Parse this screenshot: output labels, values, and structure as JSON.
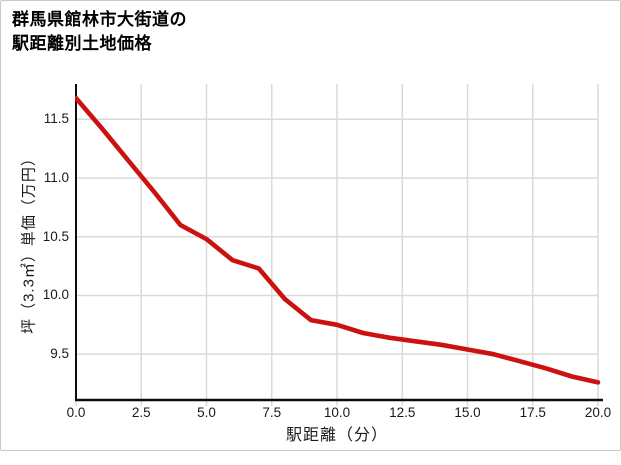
{
  "card": {
    "title_lines": [
      "群馬県館林市大街道の",
      "駅距離別土地価格"
    ]
  },
  "chart_data": {
    "type": "line",
    "title": "群馬県館林市大街道の駅距離別土地価格",
    "xlabel": "駅距離（分）",
    "ylabel": "坪（3.3㎡）単価（万円）",
    "x": [
      0,
      1,
      2,
      3,
      4,
      5,
      6,
      7,
      8,
      9,
      10,
      11,
      12,
      13,
      14,
      15,
      16,
      17,
      18,
      19,
      20
    ],
    "values": [
      11.68,
      11.42,
      11.15,
      10.88,
      10.6,
      10.48,
      10.3,
      10.23,
      9.97,
      9.79,
      9.75,
      9.68,
      9.64,
      9.61,
      9.58,
      9.54,
      9.5,
      9.44,
      9.38,
      9.31,
      9.26
    ],
    "xlim": [
      0,
      20
    ],
    "ylim": [
      9.11,
      11.8
    ],
    "x_ticks": [
      0,
      2.5,
      5,
      7.5,
      10,
      12.5,
      15,
      17.5,
      20
    ],
    "x_tick_labels": [
      "0.0",
      "2.5",
      "5.0",
      "7.5",
      "10.0",
      "12.5",
      "15.0",
      "17.5",
      "20.0"
    ],
    "y_ticks": [
      9.5,
      10.0,
      10.5,
      11.0,
      11.5
    ],
    "y_tick_labels": [
      "9.5",
      "10.0",
      "10.5",
      "11.0",
      "11.5"
    ],
    "grid": true,
    "legend": false,
    "line_color": "#cc1111",
    "grid_color": "#dadada",
    "axis_color": "#0d0d0d",
    "background_color": "#ffffff"
  }
}
